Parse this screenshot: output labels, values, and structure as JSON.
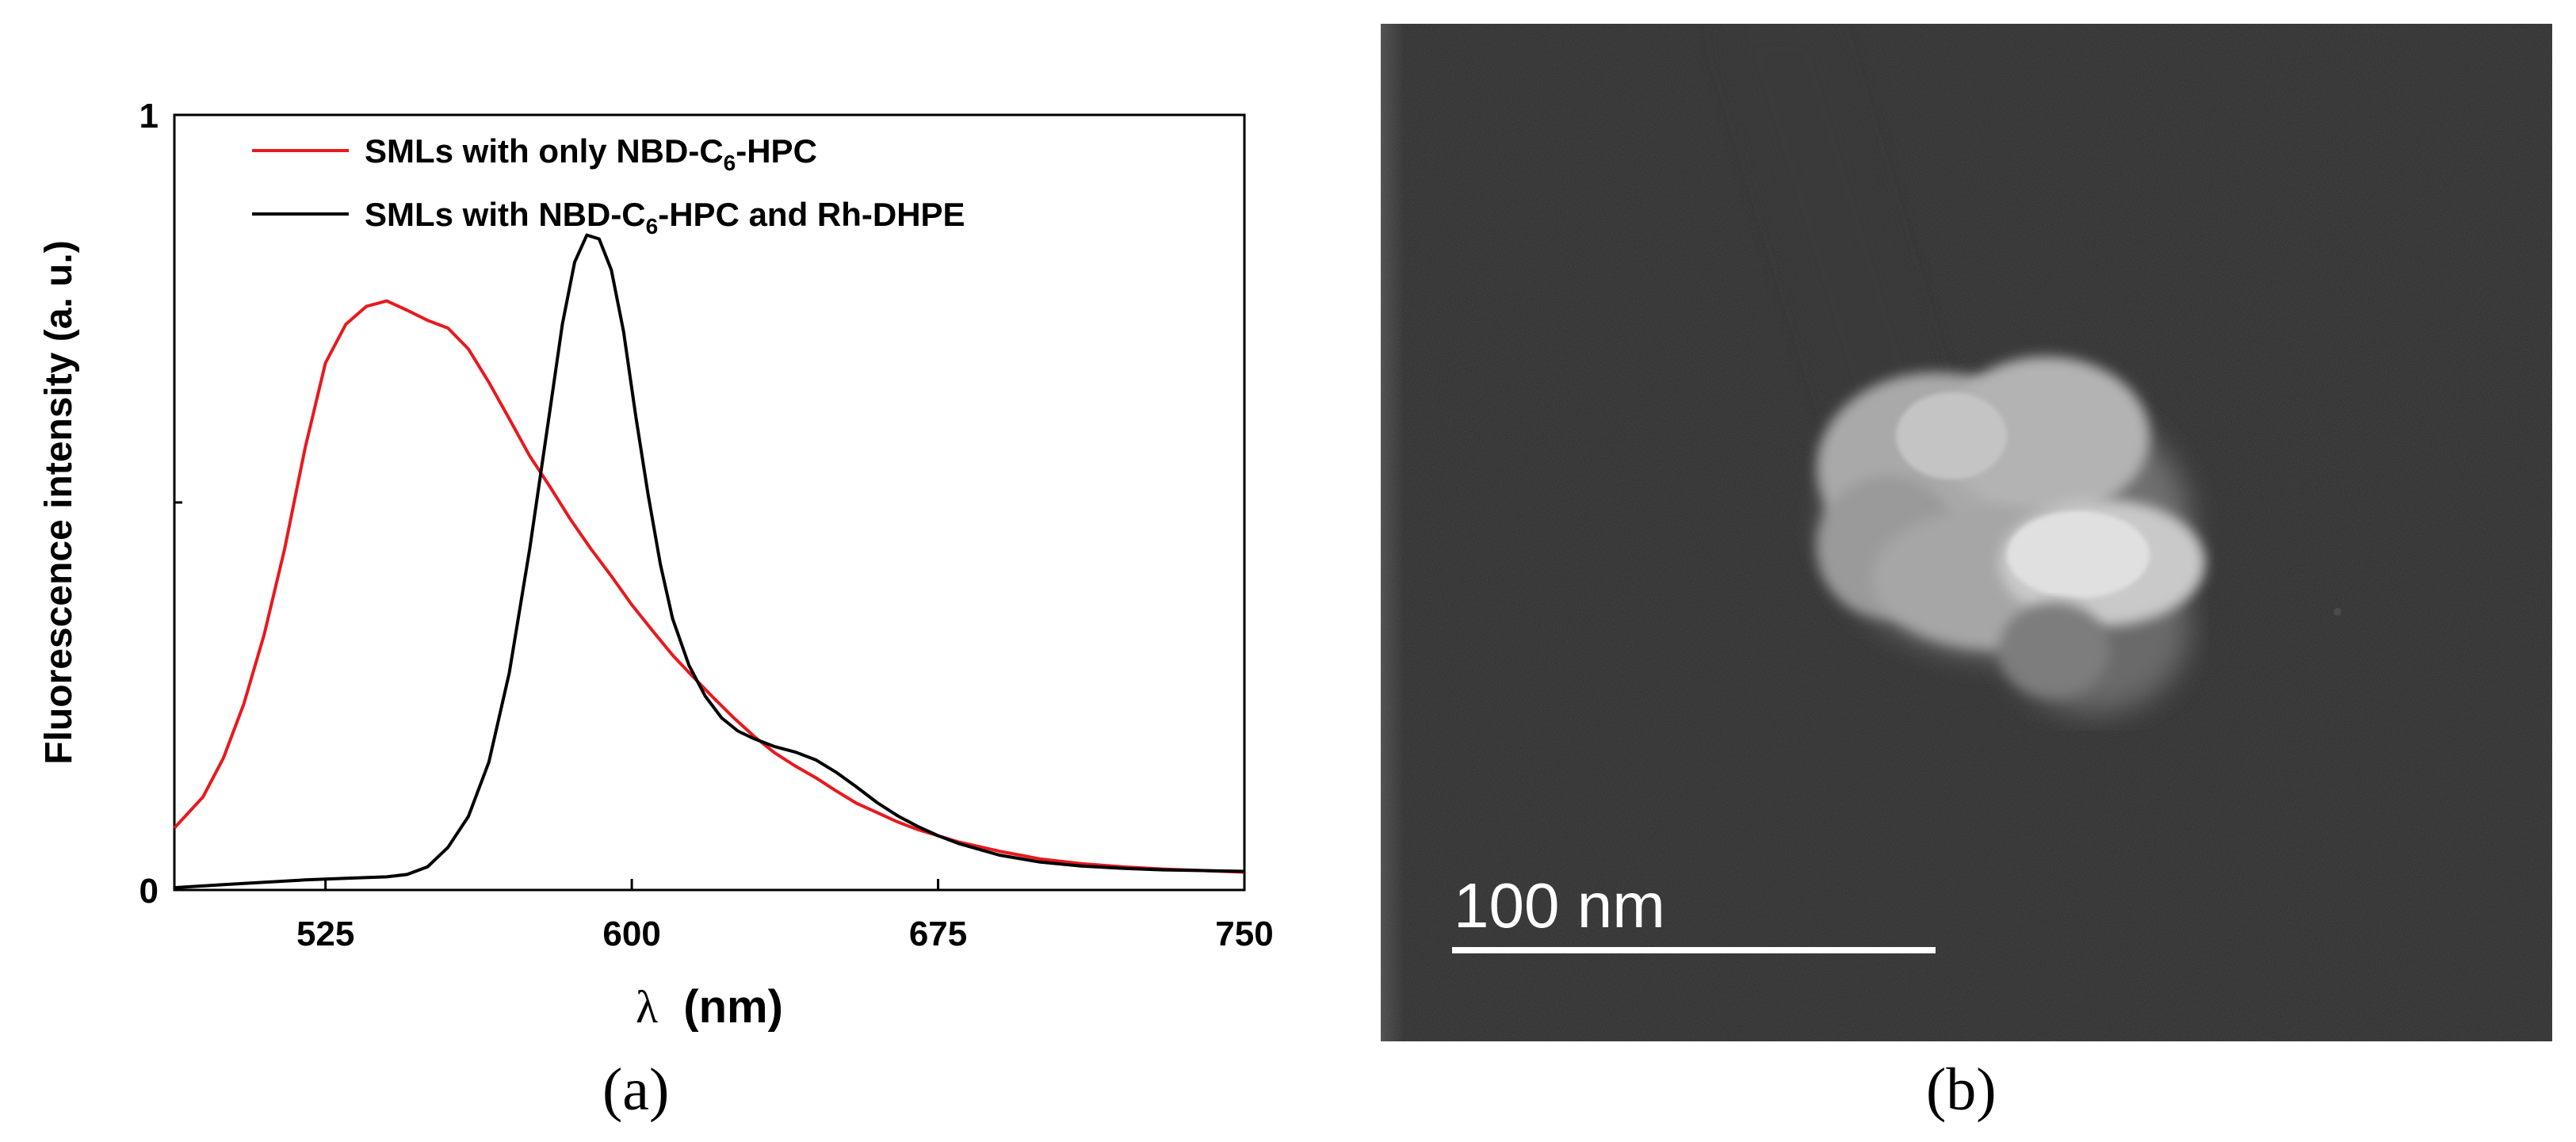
{
  "figure": {
    "panel_a_label": "(a)",
    "panel_b_label": "(b)"
  },
  "chart_data": {
    "type": "line",
    "xlabel_symbol": "λ",
    "xlabel_unit": "(nm)",
    "ylabel": "Fluorescence intensity (a. u.)",
    "xlim": [
      488,
      750
    ],
    "ylim": [
      0,
      1
    ],
    "xticks": [
      525,
      600,
      675,
      750
    ],
    "yticks": [
      0,
      1
    ],
    "yminor": [
      0.5
    ],
    "legend": {
      "placement": "top-left"
    },
    "series": [
      {
        "label_main": "SMLs with only NBD-C",
        "label_sub": "6",
        "label_tail": "-HPC",
        "color": "#e8191e",
        "x": [
          488,
          495,
          500,
          505,
          510,
          515,
          520,
          525,
          530,
          535,
          540,
          545,
          550,
          555,
          560,
          565,
          570,
          575,
          580,
          585,
          590,
          595,
          600,
          605,
          610,
          615,
          620,
          625,
          630,
          635,
          640,
          645,
          650,
          655,
          660,
          665,
          670,
          675,
          680,
          685,
          690,
          700,
          710,
          720,
          730,
          740,
          750
        ],
        "y": [
          0.08,
          0.12,
          0.17,
          0.24,
          0.33,
          0.44,
          0.57,
          0.68,
          0.73,
          0.753,
          0.76,
          0.748,
          0.735,
          0.725,
          0.698,
          0.655,
          0.608,
          0.56,
          0.52,
          0.478,
          0.44,
          0.405,
          0.368,
          0.335,
          0.303,
          0.275,
          0.248,
          0.222,
          0.198,
          0.177,
          0.16,
          0.145,
          0.128,
          0.112,
          0.1,
          0.088,
          0.078,
          0.07,
          0.062,
          0.056,
          0.05,
          0.04,
          0.034,
          0.03,
          0.027,
          0.025,
          0.023
        ]
      },
      {
        "label_main": "SMLs with NBD-C",
        "label_sub": "6",
        "label_tail": "-HPC and Rh-DHPE",
        "color": "#000000",
        "x": [
          488,
          500,
          510,
          520,
          530,
          540,
          545,
          550,
          555,
          560,
          565,
          570,
          575,
          580,
          583,
          586,
          589,
          592,
          595,
          598,
          601,
          604,
          607,
          610,
          614,
          618,
          622,
          626,
          630,
          635,
          640,
          645,
          650,
          655,
          660,
          665,
          670,
          675,
          680,
          690,
          700,
          710,
          720,
          730,
          740,
          750
        ],
        "y": [
          0.003,
          0.007,
          0.01,
          0.013,
          0.015,
          0.017,
          0.02,
          0.03,
          0.055,
          0.095,
          0.165,
          0.28,
          0.44,
          0.62,
          0.73,
          0.81,
          0.845,
          0.84,
          0.8,
          0.72,
          0.61,
          0.51,
          0.42,
          0.35,
          0.29,
          0.25,
          0.222,
          0.205,
          0.195,
          0.185,
          0.178,
          0.168,
          0.152,
          0.133,
          0.113,
          0.096,
          0.082,
          0.07,
          0.06,
          0.045,
          0.036,
          0.031,
          0.028,
          0.026,
          0.025,
          0.024
        ]
      }
    ]
  },
  "tem": {
    "scale_label": "100 nm"
  }
}
